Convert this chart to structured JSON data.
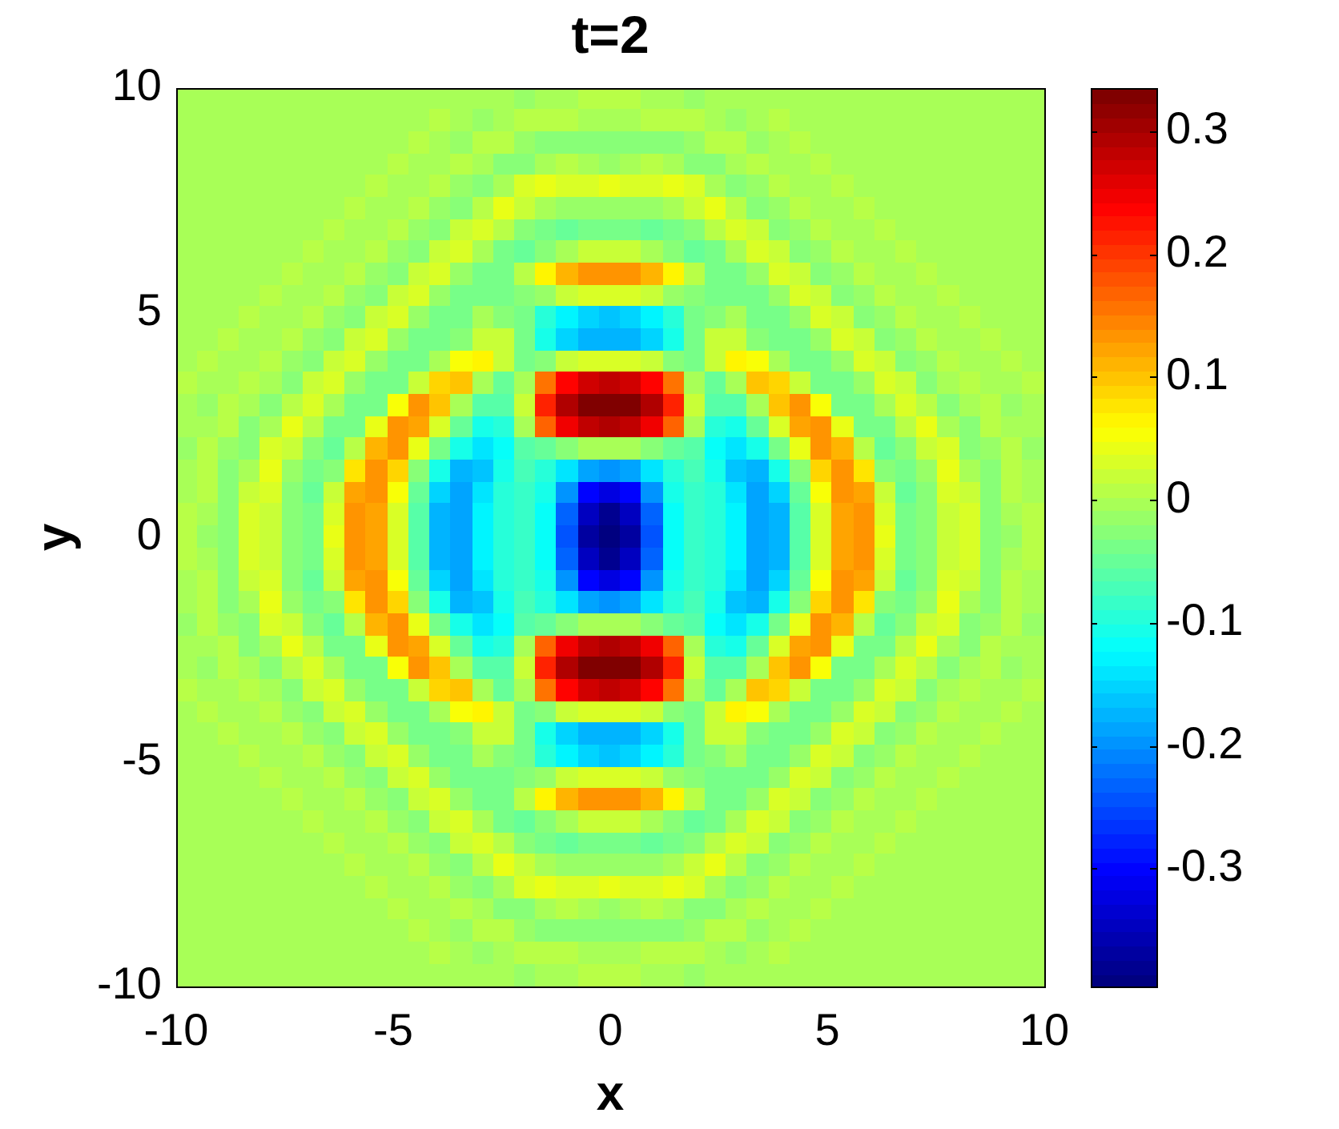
{
  "chart_data": {
    "type": "heatmap",
    "title": "t=2",
    "xlabel": "x",
    "ylabel": "y",
    "xlim": [
      -10,
      10
    ],
    "ylim": [
      -10,
      10
    ],
    "xticks": [
      -10,
      -5,
      0,
      5,
      10
    ],
    "yticks": [
      -10,
      -5,
      0,
      5,
      10
    ],
    "clim": [
      -0.396,
      0.335
    ],
    "cticks": [
      -0.3,
      -0.2,
      -0.1,
      0,
      0.1,
      0.2,
      0.3
    ],
    "cells": [
      [
        0,
        0,
        0,
        0,
        0,
        0,
        0,
        0,
        0,
        0,
        0,
        0,
        0,
        0,
        0,
        0,
        -0.01,
        0,
        0,
        0.01,
        0.01,
        0.01,
        0,
        0,
        -0.01,
        0,
        0,
        0,
        0,
        0,
        0,
        0,
        0,
        0,
        0,
        0,
        0,
        0,
        0,
        0,
        0
      ],
      [
        0,
        0,
        0,
        0,
        0,
        0,
        0,
        0,
        0,
        0,
        0,
        0,
        0.01,
        0,
        -0.01,
        0,
        0.01,
        0.01,
        0.01,
        0,
        0,
        0,
        0.01,
        0.01,
        0.01,
        0,
        -0.01,
        0,
        0.01,
        0,
        0,
        0,
        0,
        0,
        0,
        0,
        0,
        0,
        0,
        0,
        0
      ],
      [
        0,
        0,
        0,
        0,
        0,
        0,
        0,
        0,
        0,
        0,
        0,
        0.01,
        0,
        -0.01,
        0.01,
        0.01,
        -0.01,
        -0.02,
        -0.02,
        -0.02,
        -0.02,
        -0.02,
        -0.02,
        -0.02,
        -0.01,
        0.01,
        0.01,
        -0.01,
        0,
        0.01,
        0,
        0,
        0,
        0,
        0,
        0,
        0,
        0,
        0,
        0,
        0
      ],
      [
        0,
        0,
        0,
        0,
        0,
        0,
        0,
        0,
        0,
        0,
        0.01,
        0,
        0,
        0.01,
        0,
        -0.02,
        -0.02,
        0,
        0.01,
        0,
        -0.01,
        0,
        0.01,
        0,
        -0.02,
        -0.02,
        0,
        0.01,
        0,
        0,
        0.01,
        0,
        0,
        0,
        0,
        0,
        0,
        0,
        0,
        0,
        0
      ],
      [
        0,
        0,
        0,
        0,
        0,
        0,
        0,
        0,
        0,
        0.01,
        0,
        0,
        0.01,
        -0.01,
        -0.02,
        0,
        0.03,
        0.04,
        0.03,
        0.03,
        0.04,
        0.03,
        0.03,
        0.04,
        0.03,
        0,
        -0.02,
        -0.01,
        0.01,
        0,
        0,
        0.01,
        0,
        0,
        0,
        0,
        0,
        0,
        0,
        0,
        0
      ],
      [
        0,
        0,
        0,
        0,
        0,
        0,
        0,
        0,
        0.01,
        0,
        0,
        0.01,
        -0.01,
        -0.02,
        0.01,
        0.04,
        0.02,
        0,
        -0.01,
        -0.01,
        -0.01,
        -0.01,
        -0.01,
        0,
        0.02,
        0.04,
        0.01,
        -0.02,
        -0.01,
        0.01,
        0,
        0,
        0.01,
        0,
        0,
        0,
        0,
        0,
        0,
        0,
        0
      ],
      [
        0,
        0,
        0,
        0,
        0,
        0,
        0,
        0.01,
        0,
        0,
        0.01,
        -0.01,
        -0.02,
        0.02,
        0.03,
        0.01,
        -0.03,
        -0.04,
        -0.05,
        -0.04,
        -0.04,
        -0.04,
        -0.05,
        -0.04,
        -0.03,
        0.01,
        0.03,
        0.02,
        -0.02,
        -0.01,
        0.01,
        0,
        0,
        0.01,
        0,
        0,
        0,
        0,
        0,
        0,
        0
      ],
      [
        0,
        0,
        0,
        0,
        0,
        0,
        0.01,
        0,
        0,
        0.01,
        -0.01,
        -0.02,
        0.02,
        0.03,
        0,
        -0.04,
        -0.05,
        -0.03,
        0,
        0.02,
        0.02,
        0.02,
        0,
        -0.03,
        -0.05,
        -0.04,
        0,
        0.03,
        0.02,
        -0.02,
        -0.01,
        0.01,
        0,
        0,
        0.01,
        0,
        0,
        0,
        0,
        0,
        0
      ],
      [
        0,
        0,
        0,
        0,
        0,
        0.01,
        0,
        0,
        0.01,
        -0.01,
        -0.02,
        0.02,
        0.03,
        -0.01,
        -0.04,
        -0.04,
        0.01,
        0.07,
        0.11,
        0.13,
        0.13,
        0.13,
        0.11,
        0.07,
        0.01,
        -0.04,
        -0.04,
        -0.01,
        0.03,
        0.02,
        -0.02,
        -0.01,
        0.01,
        0,
        0,
        0.01,
        0,
        0,
        0,
        0,
        0
      ],
      [
        0,
        0,
        0,
        0,
        0.01,
        0,
        0,
        0.01,
        -0.01,
        -0.02,
        0.02,
        0.03,
        -0.01,
        -0.04,
        -0.04,
        -0.04,
        -0.03,
        -0.01,
        0.02,
        0.03,
        0.03,
        0.03,
        0.02,
        -0.01,
        -0.03,
        -0.04,
        -0.04,
        -0.04,
        -0.01,
        0.03,
        0.02,
        -0.02,
        -0.01,
        0.01,
        0,
        0,
        0.01,
        0,
        0,
        0,
        0
      ],
      [
        0,
        0,
        0,
        0.01,
        0,
        0,
        0.01,
        -0.01,
        -0.02,
        0.02,
        0.03,
        -0.01,
        -0.04,
        -0.04,
        0,
        -0.03,
        -0.04,
        -0.09,
        -0.13,
        -0.15,
        -0.16,
        -0.15,
        -0.13,
        -0.09,
        -0.04,
        -0.03,
        0,
        -0.04,
        -0.04,
        -0.01,
        0.03,
        0.02,
        -0.02,
        -0.01,
        0.01,
        0,
        0,
        0.01,
        0,
        0,
        0
      ],
      [
        0,
        0,
        0.01,
        0,
        0,
        0.01,
        -0.01,
        -0.02,
        0.02,
        0.03,
        -0.01,
        -0.04,
        -0.04,
        -0.02,
        0.02,
        0.02,
        -0.04,
        -0.1,
        -0.15,
        -0.17,
        -0.17,
        -0.17,
        -0.15,
        -0.1,
        -0.04,
        0.02,
        0.02,
        -0.02,
        -0.04,
        -0.04,
        -0.01,
        0.03,
        0.02,
        -0.02,
        -0.01,
        0.01,
        0,
        0,
        0.01,
        0,
        0
      ],
      [
        0,
        0.01,
        0,
        0,
        0.01,
        -0.01,
        -0.02,
        0.02,
        0.03,
        -0.01,
        -0.04,
        -0.04,
        0,
        0.05,
        0.07,
        0.02,
        -0.04,
        -0.02,
        0.02,
        0.03,
        0.03,
        0.03,
        0.02,
        -0.02,
        -0.04,
        0.02,
        0.07,
        0.05,
        0,
        -0.04,
        -0.04,
        -0.01,
        0.03,
        0.02,
        -0.02,
        -0.01,
        0.01,
        0,
        0,
        0.01,
        0
      ],
      [
        0.01,
        0,
        0,
        0.01,
        0,
        -0.02,
        0.02,
        0.03,
        -0.01,
        -0.04,
        -0.04,
        0.02,
        0.09,
        0.1,
        0,
        -0.05,
        0,
        0.16,
        0.24,
        0.27,
        0.28,
        0.27,
        0.24,
        0.16,
        0,
        -0.05,
        0,
        0.1,
        0.09,
        0.02,
        -0.04,
        -0.04,
        -0.01,
        0.03,
        0.02,
        -0.02,
        0,
        0.01,
        0,
        0,
        0.01
      ],
      [
        0,
        -0.01,
        0.01,
        0,
        -0.02,
        0.01,
        0.03,
        0,
        -0.04,
        -0.04,
        0.06,
        0.13,
        0.1,
        0,
        -0.06,
        -0.06,
        0.02,
        0.21,
        0.29,
        0.33,
        0.335,
        0.33,
        0.29,
        0.21,
        0.02,
        -0.06,
        -0.06,
        0,
        0.1,
        0.13,
        0.06,
        -0.04,
        -0.04,
        0,
        0.03,
        0.01,
        -0.02,
        0,
        0.01,
        -0.01,
        0
      ],
      [
        0,
        0,
        0.01,
        -0.02,
        0,
        0.04,
        0.01,
        -0.04,
        -0.04,
        0.04,
        0.13,
        0.12,
        0.03,
        -0.05,
        -0.1,
        -0.09,
        0,
        0.17,
        0.25,
        0.28,
        0.29,
        0.28,
        0.25,
        0.17,
        0,
        -0.09,
        -0.1,
        -0.05,
        0.03,
        0.12,
        0.13,
        0.04,
        -0.04,
        -0.04,
        0.01,
        0.04,
        0,
        -0.02,
        0.01,
        0,
        0
      ],
      [
        -0.01,
        0.01,
        -0.01,
        -0.02,
        0.03,
        0.02,
        -0.03,
        -0.05,
        0.01,
        0.11,
        0.13,
        0.04,
        -0.04,
        -0.1,
        -0.14,
        -0.12,
        -0.06,
        -0.05,
        -0.02,
        0,
        0,
        0,
        -0.02,
        -0.05,
        -0.06,
        -0.12,
        -0.14,
        -0.1,
        -0.04,
        0.04,
        0.13,
        0.11,
        0.01,
        -0.05,
        -0.03,
        0.02,
        0.03,
        -0.02,
        -0.01,
        0.01,
        -0.01
      ],
      [
        0,
        0.01,
        -0.02,
        0,
        0.04,
        -0.01,
        -0.04,
        -0.02,
        0.08,
        0.14,
        0.09,
        -0.02,
        -0.11,
        -0.17,
        -0.16,
        -0.1,
        -0.07,
        -0.09,
        -0.14,
        -0.19,
        -0.2,
        -0.19,
        -0.14,
        -0.09,
        -0.07,
        -0.1,
        -0.16,
        -0.17,
        -0.11,
        -0.02,
        0.09,
        0.14,
        0.08,
        -0.02,
        -0.04,
        -0.01,
        0.04,
        0,
        -0.02,
        0.01,
        0
      ],
      [
        0,
        0.01,
        -0.02,
        0.02,
        0.03,
        -0.02,
        -0.05,
        0.02,
        0.12,
        0.13,
        0.05,
        -0.05,
        -0.15,
        -0.19,
        -0.14,
        -0.09,
        -0.08,
        -0.11,
        -0.2,
        -0.3,
        -0.32,
        -0.3,
        -0.2,
        -0.11,
        -0.08,
        -0.09,
        -0.14,
        -0.19,
        -0.15,
        -0.05,
        0.05,
        0.13,
        0.12,
        0.02,
        -0.05,
        -0.02,
        0.03,
        0.02,
        -0.02,
        0.01,
        0
      ],
      [
        0.01,
        0,
        -0.02,
        0.03,
        0.02,
        -0.03,
        -0.04,
        0.03,
        0.14,
        0.12,
        0.03,
        -0.06,
        -0.17,
        -0.19,
        -0.13,
        -0.09,
        -0.08,
        -0.12,
        -0.23,
        -0.35,
        -0.38,
        -0.35,
        -0.23,
        -0.12,
        -0.08,
        -0.09,
        -0.13,
        -0.19,
        -0.17,
        -0.06,
        0.03,
        0.12,
        0.14,
        0.03,
        -0.04,
        -0.03,
        0.02,
        0.03,
        -0.02,
        0,
        0.01
      ],
      [
        0.01,
        -0.01,
        -0.02,
        0.03,
        0.02,
        -0.03,
        -0.04,
        0.04,
        0.14,
        0.12,
        0.03,
        -0.06,
        -0.17,
        -0.19,
        -0.13,
        -0.09,
        -0.08,
        -0.12,
        -0.24,
        -0.37,
        -0.396,
        -0.37,
        -0.24,
        -0.12,
        -0.08,
        -0.09,
        -0.13,
        -0.19,
        -0.17,
        -0.06,
        0.03,
        0.12,
        0.14,
        0.04,
        -0.04,
        -0.03,
        0.02,
        0.03,
        -0.02,
        -0.01,
        0.01
      ],
      [
        0.01,
        0,
        -0.02,
        0.03,
        0.02,
        -0.03,
        -0.04,
        0.03,
        0.14,
        0.12,
        0.03,
        -0.06,
        -0.17,
        -0.19,
        -0.13,
        -0.09,
        -0.08,
        -0.12,
        -0.23,
        -0.35,
        -0.38,
        -0.35,
        -0.23,
        -0.12,
        -0.08,
        -0.09,
        -0.13,
        -0.19,
        -0.17,
        -0.06,
        0.03,
        0.12,
        0.14,
        0.03,
        -0.04,
        -0.03,
        0.02,
        0.03,
        -0.02,
        0,
        0.01
      ],
      [
        0,
        0.01,
        -0.02,
        0.02,
        0.03,
        -0.02,
        -0.05,
        0.02,
        0.12,
        0.13,
        0.05,
        -0.05,
        -0.15,
        -0.19,
        -0.14,
        -0.09,
        -0.08,
        -0.11,
        -0.2,
        -0.3,
        -0.32,
        -0.3,
        -0.2,
        -0.11,
        -0.08,
        -0.09,
        -0.14,
        -0.19,
        -0.15,
        -0.05,
        0.05,
        0.13,
        0.12,
        0.02,
        -0.05,
        -0.02,
        0.03,
        0.02,
        -0.02,
        0.01,
        0
      ],
      [
        0,
        0.01,
        -0.02,
        0,
        0.04,
        -0.01,
        -0.04,
        -0.02,
        0.08,
        0.14,
        0.09,
        -0.02,
        -0.11,
        -0.17,
        -0.16,
        -0.1,
        -0.07,
        -0.09,
        -0.14,
        -0.19,
        -0.2,
        -0.19,
        -0.14,
        -0.09,
        -0.07,
        -0.1,
        -0.16,
        -0.17,
        -0.11,
        -0.02,
        0.09,
        0.14,
        0.08,
        -0.02,
        -0.04,
        -0.01,
        0.04,
        0,
        -0.02,
        0.01,
        0
      ],
      [
        -0.01,
        0.01,
        -0.01,
        -0.02,
        0.03,
        0.02,
        -0.03,
        -0.05,
        0.01,
        0.11,
        0.13,
        0.04,
        -0.04,
        -0.1,
        -0.14,
        -0.12,
        -0.06,
        -0.05,
        -0.02,
        0,
        0,
        0,
        -0.02,
        -0.05,
        -0.06,
        -0.12,
        -0.14,
        -0.1,
        -0.04,
        0.04,
        0.13,
        0.11,
        0.01,
        -0.05,
        -0.03,
        0.02,
        0.03,
        -0.02,
        -0.01,
        0.01,
        -0.01
      ],
      [
        0,
        0,
        0.01,
        -0.02,
        0,
        0.04,
        0.01,
        -0.04,
        -0.04,
        0.04,
        0.13,
        0.12,
        0.03,
        -0.05,
        -0.1,
        -0.09,
        0,
        0.17,
        0.25,
        0.28,
        0.29,
        0.28,
        0.25,
        0.17,
        0,
        -0.09,
        -0.1,
        -0.05,
        0.03,
        0.12,
        0.13,
        0.04,
        -0.04,
        -0.04,
        0.01,
        0.04,
        0,
        -0.02,
        0.01,
        0,
        0
      ],
      [
        0,
        -0.01,
        0.01,
        0,
        -0.02,
        0.01,
        0.03,
        0,
        -0.04,
        -0.04,
        0.06,
        0.13,
        0.1,
        0,
        -0.06,
        -0.06,
        0.02,
        0.21,
        0.29,
        0.33,
        0.335,
        0.33,
        0.29,
        0.21,
        0.02,
        -0.06,
        -0.06,
        0,
        0.1,
        0.13,
        0.06,
        -0.04,
        -0.04,
        0,
        0.03,
        0.01,
        -0.02,
        0,
        0.01,
        -0.01,
        0
      ],
      [
        0.01,
        0,
        0,
        0.01,
        0,
        -0.02,
        0.02,
        0.03,
        -0.01,
        -0.04,
        -0.04,
        0.02,
        0.09,
        0.1,
        0,
        -0.05,
        0,
        0.16,
        0.24,
        0.27,
        0.28,
        0.27,
        0.24,
        0.16,
        0,
        -0.05,
        0,
        0.1,
        0.09,
        0.02,
        -0.04,
        -0.04,
        -0.01,
        0.03,
        0.02,
        -0.02,
        0,
        0.01,
        0,
        0,
        0.01
      ],
      [
        0,
        0.01,
        0,
        0,
        0.01,
        -0.01,
        -0.02,
        0.02,
        0.03,
        -0.01,
        -0.04,
        -0.04,
        0,
        0.05,
        0.07,
        0.02,
        -0.04,
        -0.02,
        0.02,
        0.03,
        0.03,
        0.03,
        0.02,
        -0.02,
        -0.04,
        0.02,
        0.07,
        0.05,
        0,
        -0.04,
        -0.04,
        -0.01,
        0.03,
        0.02,
        -0.02,
        -0.01,
        0.01,
        0,
        0,
        0.01,
        0
      ],
      [
        0,
        0,
        0.01,
        0,
        0,
        0.01,
        -0.01,
        -0.02,
        0.02,
        0.03,
        -0.01,
        -0.04,
        -0.04,
        -0.02,
        0.02,
        0.02,
        -0.04,
        -0.1,
        -0.15,
        -0.17,
        -0.17,
        -0.17,
        -0.15,
        -0.1,
        -0.04,
        0.02,
        0.02,
        -0.02,
        -0.04,
        -0.04,
        -0.01,
        0.03,
        0.02,
        -0.02,
        -0.01,
        0.01,
        0,
        0,
        0.01,
        0,
        0
      ],
      [
        0,
        0,
        0,
        0.01,
        0,
        0,
        0.01,
        -0.01,
        -0.02,
        0.02,
        0.03,
        -0.01,
        -0.04,
        -0.04,
        0,
        -0.03,
        -0.04,
        -0.09,
        -0.13,
        -0.15,
        -0.16,
        -0.15,
        -0.13,
        -0.09,
        -0.04,
        -0.03,
        0,
        -0.04,
        -0.04,
        -0.01,
        0.03,
        0.02,
        -0.02,
        -0.01,
        0.01,
        0,
        0,
        0.01,
        0,
        0,
        0
      ],
      [
        0,
        0,
        0,
        0,
        0.01,
        0,
        0,
        0.01,
        -0.01,
        -0.02,
        0.02,
        0.03,
        -0.01,
        -0.04,
        -0.04,
        -0.04,
        -0.03,
        -0.01,
        0.02,
        0.03,
        0.03,
        0.03,
        0.02,
        -0.01,
        -0.03,
        -0.04,
        -0.04,
        -0.04,
        -0.01,
        0.03,
        0.02,
        -0.02,
        -0.01,
        0.01,
        0,
        0,
        0.01,
        0,
        0,
        0,
        0
      ],
      [
        0,
        0,
        0,
        0,
        0,
        0.01,
        0,
        0,
        0.01,
        -0.01,
        -0.02,
        0.02,
        0.03,
        -0.01,
        -0.04,
        -0.04,
        0.01,
        0.07,
        0.11,
        0.13,
        0.13,
        0.13,
        0.11,
        0.07,
        0.01,
        -0.04,
        -0.04,
        -0.01,
        0.03,
        0.02,
        -0.02,
        -0.01,
        0.01,
        0,
        0,
        0.01,
        0,
        0,
        0,
        0,
        0
      ],
      [
        0,
        0,
        0,
        0,
        0,
        0,
        0.01,
        0,
        0,
        0.01,
        -0.01,
        -0.02,
        0.02,
        0.03,
        0,
        -0.04,
        -0.05,
        -0.03,
        0,
        0.02,
        0.02,
        0.02,
        0,
        -0.03,
        -0.05,
        -0.04,
        0,
        0.03,
        0.02,
        -0.02,
        -0.01,
        0.01,
        0,
        0,
        0.01,
        0,
        0,
        0,
        0,
        0,
        0
      ],
      [
        0,
        0,
        0,
        0,
        0,
        0,
        0,
        0.01,
        0,
        0,
        0.01,
        -0.01,
        -0.02,
        0.02,
        0.03,
        0.01,
        -0.03,
        -0.04,
        -0.05,
        -0.04,
        -0.04,
        -0.04,
        -0.05,
        -0.04,
        -0.03,
        0.01,
        0.03,
        0.02,
        -0.02,
        -0.01,
        0.01,
        0,
        0,
        0.01,
        0,
        0,
        0,
        0,
        0,
        0,
        0
      ],
      [
        0,
        0,
        0,
        0,
        0,
        0,
        0,
        0,
        0.01,
        0,
        0,
        0.01,
        -0.01,
        -0.02,
        0.01,
        0.04,
        0.02,
        0,
        -0.01,
        -0.01,
        -0.01,
        -0.01,
        -0.01,
        0,
        0.02,
        0.04,
        0.01,
        -0.02,
        -0.01,
        0.01,
        0,
        0,
        0.01,
        0,
        0,
        0,
        0,
        0,
        0,
        0,
        0
      ],
      [
        0,
        0,
        0,
        0,
        0,
        0,
        0,
        0,
        0,
        0.01,
        0,
        0,
        0.01,
        -0.01,
        -0.02,
        0,
        0.03,
        0.04,
        0.03,
        0.03,
        0.04,
        0.03,
        0.03,
        0.04,
        0.03,
        0,
        -0.02,
        -0.01,
        0.01,
        0,
        0,
        0.01,
        0,
        0,
        0,
        0,
        0,
        0,
        0,
        0,
        0
      ],
      [
        0,
        0,
        0,
        0,
        0,
        0,
        0,
        0,
        0,
        0,
        0.01,
        0,
        0,
        0.01,
        0,
        -0.02,
        -0.02,
        0,
        0.01,
        0,
        -0.01,
        0,
        0.01,
        0,
        -0.02,
        -0.02,
        0,
        0.01,
        0,
        0,
        0.01,
        0,
        0,
        0,
        0,
        0,
        0,
        0,
        0,
        0,
        0
      ],
      [
        0,
        0,
        0,
        0,
        0,
        0,
        0,
        0,
        0,
        0,
        0,
        0.01,
        0,
        -0.01,
        0.01,
        0.01,
        -0.01,
        -0.02,
        -0.02,
        -0.02,
        -0.02,
        -0.02,
        -0.02,
        -0.02,
        -0.01,
        0.01,
        0.01,
        -0.01,
        0,
        0.01,
        0,
        0,
        0,
        0,
        0,
        0,
        0,
        0,
        0,
        0,
        0
      ],
      [
        0,
        0,
        0,
        0,
        0,
        0,
        0,
        0,
        0,
        0,
        0,
        0,
        0.01,
        0,
        -0.01,
        0,
        0.01,
        0.01,
        0.01,
        0,
        0,
        0,
        0.01,
        0.01,
        0.01,
        0,
        -0.01,
        0,
        0.01,
        0,
        0,
        0,
        0,
        0,
        0,
        0,
        0,
        0,
        0,
        0,
        0
      ],
      [
        0,
        0,
        0,
        0,
        0,
        0,
        0,
        0,
        0,
        0,
        0,
        0,
        0,
        0,
        0,
        0,
        -0.01,
        0,
        0,
        0.01,
        0.01,
        0.01,
        0,
        0,
        -0.01,
        0,
        0,
        0,
        0,
        0,
        0,
        0,
        0,
        0,
        0,
        0,
        0,
        0,
        0,
        0,
        0
      ]
    ]
  }
}
